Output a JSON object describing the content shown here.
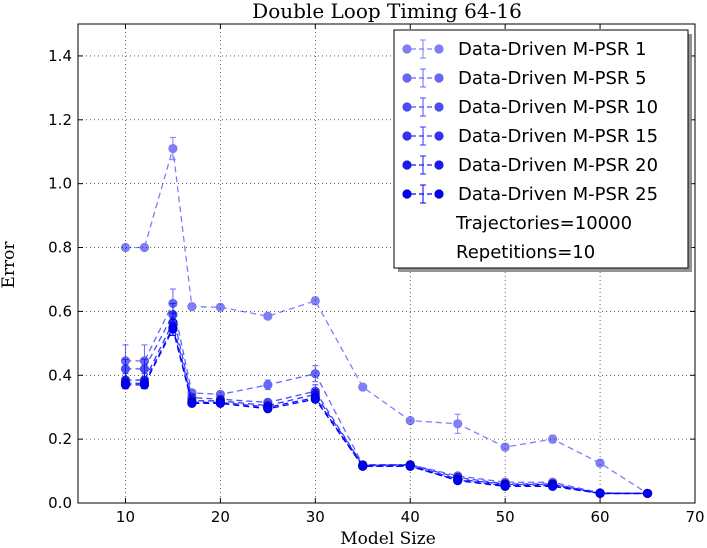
{
  "chart_data": {
    "type": "line",
    "title": "Double Loop Timing 64-16",
    "xlabel": "Model Size",
    "ylabel": "Error",
    "xlim": [
      5,
      70
    ],
    "ylim": [
      0.0,
      1.5
    ],
    "xticks": [
      10,
      20,
      30,
      40,
      50,
      60,
      70
    ],
    "yticks": [
      0.0,
      0.2,
      0.4,
      0.6,
      0.8,
      1.0,
      1.2,
      1.4
    ],
    "xtick_labels": [
      "10",
      "20",
      "30",
      "40",
      "50",
      "60",
      "70"
    ],
    "ytick_labels": [
      "0.0",
      "0.2",
      "0.4",
      "0.6",
      "0.8",
      "1.0",
      "1.2",
      "1.4"
    ],
    "grid": true,
    "legend_position": "top-right",
    "legend_notes": [
      "Trajectories=10000",
      "Repetitions=10"
    ],
    "series": [
      {
        "name": "Data-Driven M-PSR 1",
        "color": "#0000ff",
        "opacity": 0.5,
        "x": [
          10,
          12,
          15,
          17,
          20,
          25,
          30,
          35,
          40,
          45,
          50,
          55,
          60,
          65
        ],
        "values": [
          0.8,
          0.8,
          1.11,
          0.615,
          0.613,
          0.585,
          0.633,
          0.363,
          0.258,
          0.248,
          0.175,
          0.2,
          0.125,
          0.03
        ],
        "errors": [
          0.005,
          0.005,
          0.035,
          0.01,
          0.005,
          0.008,
          0.012,
          0.005,
          0.008,
          0.03,
          0.01,
          0.012,
          0.01,
          0.005
        ]
      },
      {
        "name": "Data-Driven M-PSR 5",
        "color": "#0000ff",
        "opacity": 0.6,
        "x": [
          10,
          12,
          15,
          17,
          20,
          25,
          30,
          35,
          40,
          45,
          50,
          55,
          60,
          65
        ],
        "values": [
          0.445,
          0.445,
          0.625,
          0.345,
          0.34,
          0.37,
          0.405,
          0.12,
          0.12,
          0.085,
          0.065,
          0.065,
          0.032,
          0.03
        ],
        "errors": [
          0.05,
          0.05,
          0.045,
          0.01,
          0.01,
          0.015,
          0.025,
          0.01,
          0.01,
          0.01,
          0.01,
          0.01,
          0.005,
          0.005
        ]
      },
      {
        "name": "Data-Driven M-PSR 10",
        "color": "#0000ff",
        "opacity": 0.7,
        "x": [
          10,
          12,
          15,
          17,
          20,
          25,
          30,
          35,
          40,
          45,
          50,
          55,
          60,
          65
        ],
        "values": [
          0.42,
          0.42,
          0.59,
          0.33,
          0.325,
          0.315,
          0.35,
          0.118,
          0.12,
          0.08,
          0.06,
          0.06,
          0.03,
          0.03
        ],
        "errors": [
          0.03,
          0.03,
          0.035,
          0.01,
          0.01,
          0.01,
          0.02,
          0.01,
          0.01,
          0.01,
          0.01,
          0.01,
          0.005,
          0.005
        ]
      },
      {
        "name": "Data-Driven M-PSR 15",
        "color": "#0000ff",
        "opacity": 0.8,
        "x": [
          10,
          12,
          15,
          17,
          20,
          25,
          30,
          35,
          40,
          45,
          50,
          55,
          60,
          65
        ],
        "values": [
          0.385,
          0.385,
          0.565,
          0.32,
          0.32,
          0.305,
          0.34,
          0.118,
          0.118,
          0.075,
          0.058,
          0.058,
          0.03,
          0.03
        ],
        "errors": [
          0.02,
          0.02,
          0.03,
          0.01,
          0.01,
          0.01,
          0.015,
          0.008,
          0.008,
          0.008,
          0.008,
          0.008,
          0.004,
          0.004
        ]
      },
      {
        "name": "Data-Driven M-PSR 20",
        "color": "#0000ff",
        "opacity": 0.9,
        "x": [
          10,
          12,
          15,
          17,
          20,
          25,
          30,
          35,
          40,
          45,
          50,
          55,
          60,
          65
        ],
        "values": [
          0.375,
          0.375,
          0.55,
          0.315,
          0.315,
          0.3,
          0.33,
          0.115,
          0.115,
          0.072,
          0.055,
          0.055,
          0.03,
          0.03
        ],
        "errors": [
          0.015,
          0.015,
          0.025,
          0.008,
          0.008,
          0.008,
          0.012,
          0.008,
          0.008,
          0.008,
          0.008,
          0.008,
          0.004,
          0.004
        ]
      },
      {
        "name": "Data-Driven M-PSR 25",
        "color": "#0000ff",
        "opacity": 1.0,
        "x": [
          10,
          12,
          15,
          17,
          20,
          25,
          30,
          35,
          40,
          45,
          50,
          55,
          60,
          65
        ],
        "values": [
          0.37,
          0.37,
          0.545,
          0.312,
          0.312,
          0.295,
          0.325,
          0.115,
          0.115,
          0.07,
          0.052,
          0.052,
          0.03,
          0.03
        ],
        "errors": [
          0.012,
          0.012,
          0.02,
          0.006,
          0.006,
          0.006,
          0.01,
          0.006,
          0.006,
          0.006,
          0.006,
          0.006,
          0.003,
          0.003
        ]
      }
    ]
  }
}
